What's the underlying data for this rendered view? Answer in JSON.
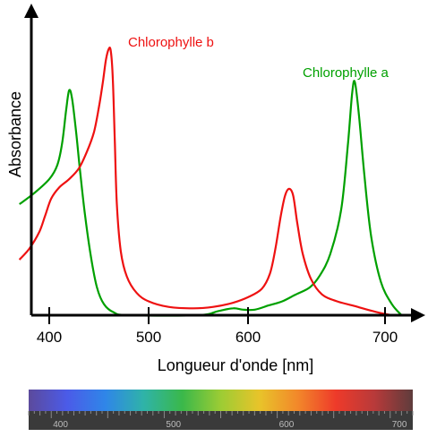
{
  "chart_data": {
    "type": "line",
    "title": "",
    "xlabel": "Longueur d'onde [nm]",
    "ylabel": "Absorbance",
    "xlim": [
      370,
      770
    ],
    "ylim": [
      0,
      1.0
    ],
    "x_ticks": [
      400,
      500,
      600,
      700
    ],
    "grid": false,
    "legend": "inline labels near peaks",
    "series": [
      {
        "name": "Chlorophylle a",
        "color": "#00a000",
        "label_anchor": [
          650,
          0.92
        ],
        "points": [
          [
            370,
            0.4
          ],
          [
            385,
            0.44
          ],
          [
            400,
            0.49
          ],
          [
            408,
            0.54
          ],
          [
            413,
            0.62
          ],
          [
            417,
            0.74
          ],
          [
            420,
            0.81
          ],
          [
            423,
            0.78
          ],
          [
            427,
            0.66
          ],
          [
            431,
            0.52
          ],
          [
            436,
            0.36
          ],
          [
            442,
            0.21
          ],
          [
            448,
            0.1
          ],
          [
            455,
            0.04
          ],
          [
            465,
            0.01
          ],
          [
            480,
            0.0
          ],
          [
            550,
            0.0
          ],
          [
            570,
            0.015
          ],
          [
            585,
            0.025
          ],
          [
            595,
            0.02
          ],
          [
            605,
            0.02
          ],
          [
            615,
            0.035
          ],
          [
            625,
            0.05
          ],
          [
            635,
            0.075
          ],
          [
            645,
            0.1
          ],
          [
            652,
            0.14
          ],
          [
            660,
            0.22
          ],
          [
            668,
            0.38
          ],
          [
            673,
            0.62
          ],
          [
            676,
            0.8
          ],
          [
            678,
            0.84
          ],
          [
            681,
            0.72
          ],
          [
            685,
            0.5
          ],
          [
            690,
            0.28
          ],
          [
            697,
            0.12
          ],
          [
            705,
            0.04
          ],
          [
            712,
            0.0
          ]
        ]
      },
      {
        "name": "Chlorophylle b",
        "color": "#ee1111",
        "label_anchor": [
          468,
          1.0
        ],
        "points": [
          [
            370,
            0.2
          ],
          [
            380,
            0.24
          ],
          [
            390,
            0.3
          ],
          [
            396,
            0.36
          ],
          [
            402,
            0.42
          ],
          [
            410,
            0.46
          ],
          [
            420,
            0.49
          ],
          [
            430,
            0.53
          ],
          [
            438,
            0.59
          ],
          [
            445,
            0.66
          ],
          [
            450,
            0.75
          ],
          [
            454,
            0.84
          ],
          [
            457,
            0.92
          ],
          [
            460,
            0.96
          ],
          [
            462,
            0.95
          ],
          [
            464,
            0.85
          ],
          [
            466,
            0.62
          ],
          [
            468,
            0.4
          ],
          [
            472,
            0.23
          ],
          [
            478,
            0.14
          ],
          [
            488,
            0.08
          ],
          [
            500,
            0.05
          ],
          [
            520,
            0.03
          ],
          [
            545,
            0.025
          ],
          [
            565,
            0.03
          ],
          [
            585,
            0.045
          ],
          [
            600,
            0.065
          ],
          [
            610,
            0.095
          ],
          [
            616,
            0.15
          ],
          [
            620,
            0.24
          ],
          [
            624,
            0.36
          ],
          [
            627,
            0.43
          ],
          [
            630,
            0.455
          ],
          [
            633,
            0.43
          ],
          [
            636,
            0.33
          ],
          [
            640,
            0.22
          ],
          [
            646,
            0.13
          ],
          [
            654,
            0.075
          ],
          [
            665,
            0.05
          ],
          [
            680,
            0.03
          ],
          [
            695,
            0.01
          ],
          [
            705,
            0.0
          ]
        ]
      }
    ]
  },
  "spectrum_bar": {
    "ticks": [
      400,
      500,
      600,
      700
    ],
    "range": [
      380,
      720
    ],
    "colors": [
      "#5c4a9c",
      "#4b5be8",
      "#2f86e8",
      "#2fb3a8",
      "#3ab84a",
      "#9ccc34",
      "#e8c42a",
      "#f2882a",
      "#ee3a2a",
      "#b83a3a",
      "#5e3c3c"
    ]
  }
}
